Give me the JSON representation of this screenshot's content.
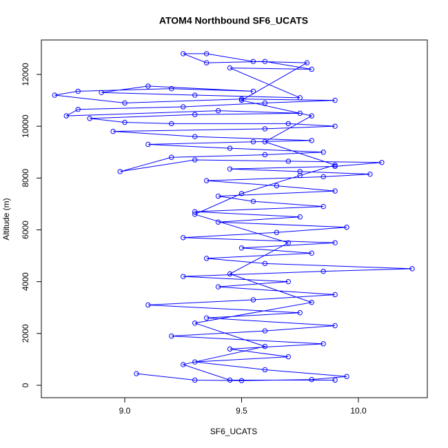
{
  "chart_data": {
    "type": "line",
    "title": "ATOM4 Northbound SF6_UCATS",
    "x_label": "SF6_UCATS",
    "y_label": "Altitude (m)",
    "color": "#0000ff",
    "markers": true,
    "x": [
      9.05,
      9.3,
      9.5,
      9.8,
      9.95,
      9.6,
      9.3,
      9.7,
      9.45,
      9.85,
      9.2,
      9.6,
      9.9,
      9.35,
      9.75,
      9.1,
      9.55,
      9.9,
      9.4,
      9.7,
      9.25,
      9.85,
      10.23,
      9.6,
      9.35,
      9.8,
      9.5,
      9.9,
      9.25,
      9.65,
      9.95,
      9.4,
      9.75,
      9.3,
      9.85,
      9.55,
      9.4,
      9.9,
      9.65,
      9.35,
      9.85,
      10.05,
      9.75,
      9.45,
      9.9,
      10.1,
      9.7,
      9.3,
      8.98,
      9.2,
      9.6,
      9.85,
      9.45,
      9.1,
      9.55,
      9.8,
      9.3,
      8.95,
      9.6,
      9.9,
      9.7,
      9.2,
      9.0,
      8.85,
      9.3,
      9.75,
      9.4,
      8.75,
      8.8,
      9.25,
      9.6,
      9.9,
      9.5,
      9.0,
      8.7,
      8.8,
      9.2,
      9.55,
      9.1,
      8.9,
      9.3,
      9.75,
      9.45,
      9.8,
      9.6,
      9.35,
      9.25,
      9.35,
      9.55,
      9.78,
      9.5,
      9.8,
      9.6,
      9.9,
      9.75,
      9.5,
      9.3,
      9.7,
      9.45,
      9.8,
      9.3,
      9.6,
      9.25,
      9.45,
      9.9
    ],
    "values": [
      450,
      200,
      180,
      220,
      340,
      600,
      900,
      1100,
      1400,
      1600,
      1900,
      2100,
      2300,
      2600,
      2800,
      3100,
      3300,
      3500,
      3800,
      4000,
      4200,
      4400,
      4500,
      4700,
      4900,
      5100,
      5300,
      5500,
      5700,
      5900,
      6100,
      6300,
      6500,
      6700,
      6900,
      7100,
      7300,
      7500,
      7700,
      7900,
      8050,
      8150,
      8250,
      8350,
      8450,
      8600,
      8650,
      8700,
      8250,
      8800,
      8900,
      9000,
      9150,
      9300,
      9400,
      9450,
      9600,
      9800,
      9900,
      10000,
      10100,
      10100,
      10150,
      10300,
      10450,
      10500,
      10600,
      10400,
      10650,
      10750,
      10900,
      11000,
      11050,
      10900,
      11200,
      11350,
      11450,
      11350,
      11550,
      11300,
      11200,
      11100,
      12250,
      12200,
      12500,
      12450,
      12800,
      12800,
      12500,
      12450,
      11000,
      10400,
      9400,
      8500,
      8100,
      7400,
      6600,
      5500,
      4300,
      3200,
      2400,
      1500,
      800,
      200,
      200
    ],
    "xlim": [
      8.643,
      10.295
    ],
    "ylim": [
      -479,
      13330
    ],
    "xticks": [
      {
        "value": 9,
        "label": "9.0"
      },
      9.5,
      {
        "value": 10,
        "label": "10.0"
      }
    ],
    "yticks": [
      0,
      2000,
      4000,
      6000,
      8000,
      10000,
      12000
    ]
  }
}
